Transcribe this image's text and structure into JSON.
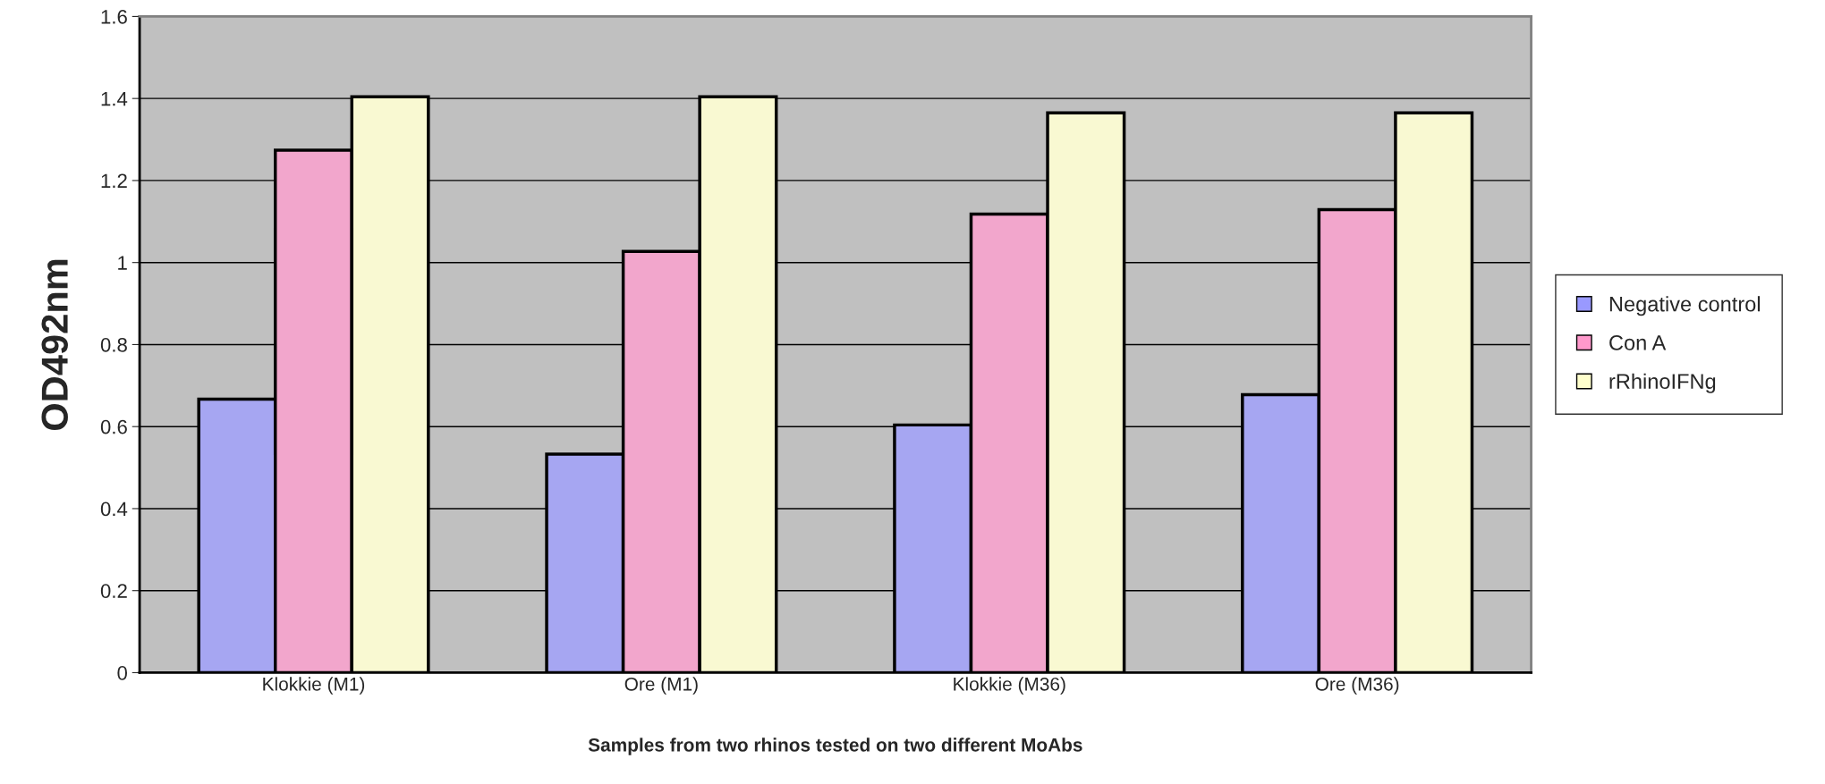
{
  "chart_data": {
    "type": "bar",
    "xlabel": "Samples from two rhinos tested on two different MoAbs",
    "ylabel": "OD492nm",
    "categories": [
      "Klokkie (M1)",
      "Ore (M1)",
      "Klokkie (M36)",
      "Ore (M36)"
    ],
    "series": [
      {
        "name": "Negative control",
        "color": "#9999ff",
        "values": [
          0.667,
          0.533,
          0.604,
          0.678
        ]
      },
      {
        "name": "Con A",
        "color": "#ff99cc",
        "values": [
          1.274,
          1.027,
          1.118,
          1.129
        ]
      },
      {
        "name": "rRhinoIFNg",
        "color": "#ffffcc",
        "values": [
          1.404,
          1.404,
          1.365,
          1.365
        ]
      }
    ],
    "ylim": [
      0,
      1.6
    ],
    "yticks": [
      0,
      0.2,
      0.4,
      0.6,
      0.8,
      1,
      1.2,
      1.4,
      1.6
    ],
    "grid": "y",
    "legend": "right"
  }
}
